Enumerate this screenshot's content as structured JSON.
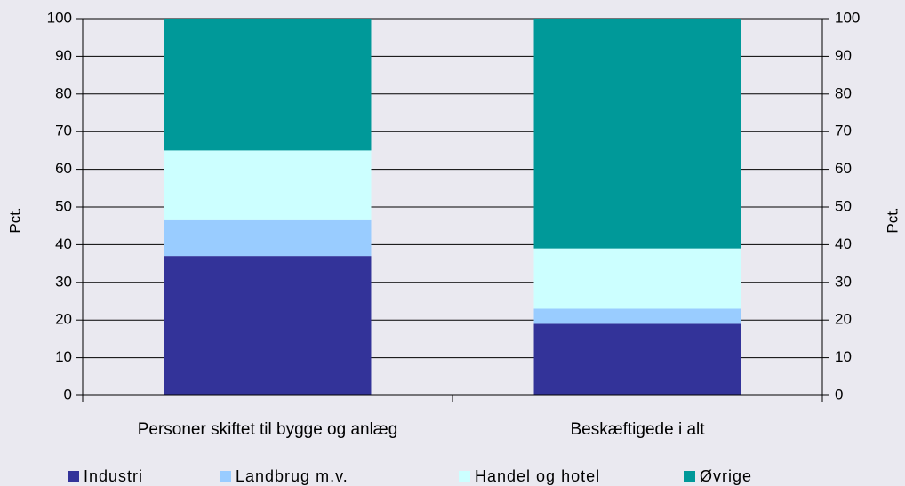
{
  "chart_data": {
    "type": "stacked_bar",
    "categories": [
      "Personer skiftet til bygge og anlæg",
      "Beskæftigede i alt"
    ],
    "series": [
      {
        "name": "Industri",
        "color": "#333399",
        "values": [
          37,
          19
        ]
      },
      {
        "name": "Landbrug m.v.",
        "color": "#99ccff",
        "values": [
          9.5,
          4
        ]
      },
      {
        "name": "Handel og hotel",
        "color": "#ccffff",
        "values": [
          18.5,
          16
        ]
      },
      {
        "name": "Øvrige",
        "color": "#009999",
        "values": [
          35,
          61
        ]
      }
    ],
    "ylabel": "Pct.",
    "y2label": "Pct.",
    "ylim": [
      0,
      100
    ],
    "yticks": [
      0,
      10,
      20,
      30,
      40,
      50,
      60,
      70,
      80,
      90,
      100
    ],
    "y2lim": [
      0,
      100
    ],
    "y2ticks": [
      0,
      10,
      20,
      30,
      40,
      50,
      60,
      70,
      80,
      90,
      100
    ],
    "grid": true,
    "legend": "bottom"
  }
}
